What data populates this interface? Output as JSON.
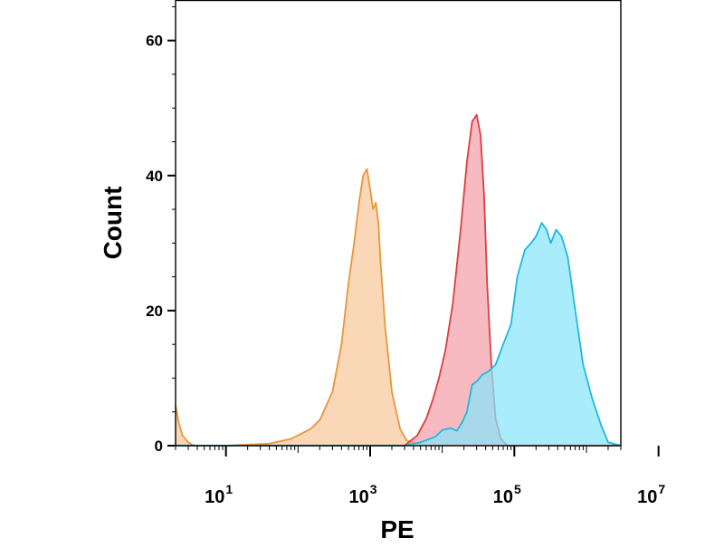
{
  "chart_data": {
    "type": "area",
    "title": "",
    "xlabel": "PE",
    "ylabel": "Count",
    "xscale": "log",
    "xlim": [
      2,
      3000000
    ],
    "ylim": [
      0,
      66
    ],
    "yticks": [
      0,
      20,
      40,
      60
    ],
    "xticks": [
      {
        "value": 10,
        "base": "10",
        "exp": "1"
      },
      {
        "value": 1000,
        "base": "10",
        "exp": "3"
      },
      {
        "value": 100000,
        "base": "10",
        "exp": "5"
      },
      {
        "value": 10000000,
        "base": "10",
        "exp": "7"
      }
    ],
    "grid": false,
    "legend": "none",
    "series": [
      {
        "color": "#e8963c",
        "fill": "#f8c89a",
        "x": [
          2,
          2.2,
          2.5,
          3,
          3.6,
          5,
          10,
          40,
          80,
          150,
          200,
          300,
          400,
          500,
          600,
          700,
          800,
          900,
          1000,
          1100,
          1200,
          1300,
          1400,
          1600,
          2000,
          2600,
          3200,
          4500,
          7000,
          3000000
        ],
        "y": [
          6,
          3.5,
          1.5,
          0.5,
          0,
          0,
          0,
          0.3,
          1,
          2.5,
          3.8,
          8,
          15,
          24,
          30,
          36,
          40,
          41,
          38,
          35,
          36,
          33,
          27,
          18,
          8,
          2.5,
          0.8,
          0.2,
          0,
          0
        ]
      },
      {
        "color": "#d84040",
        "fill": "#f4a0a8",
        "x": [
          2,
          3000,
          4500,
          6000,
          7500,
          9000,
          11000,
          14000,
          18000,
          22000,
          26000,
          30000,
          34000,
          38000,
          42000,
          48000,
          55000,
          65000,
          80000,
          3000000
        ],
        "y": [
          0,
          0,
          1.5,
          4,
          7,
          10,
          14,
          21,
          32,
          42,
          48,
          49,
          46,
          37,
          24,
          12,
          4,
          1,
          0,
          0
        ]
      },
      {
        "color": "#20b8e0",
        "fill": "#88e4fa",
        "x": [
          2,
          3000,
          5000,
          8000,
          10000,
          13000,
          16000,
          19000,
          22000,
          26000,
          30000,
          36000,
          44000,
          55000,
          70000,
          90000,
          110000,
          140000,
          170000,
          200000,
          240000,
          280000,
          320000,
          380000,
          450000,
          550000,
          700000,
          900000,
          1200000,
          1600000,
          2000000,
          3000000
        ],
        "y": [
          0,
          0,
          0.5,
          1.3,
          2.3,
          2.6,
          2.2,
          3.5,
          5,
          9,
          9.5,
          10.5,
          11,
          12,
          15,
          18,
          25,
          29,
          30,
          31,
          33,
          32,
          30,
          32,
          31,
          28,
          20,
          12,
          7,
          3,
          0.5,
          0
        ]
      }
    ]
  }
}
